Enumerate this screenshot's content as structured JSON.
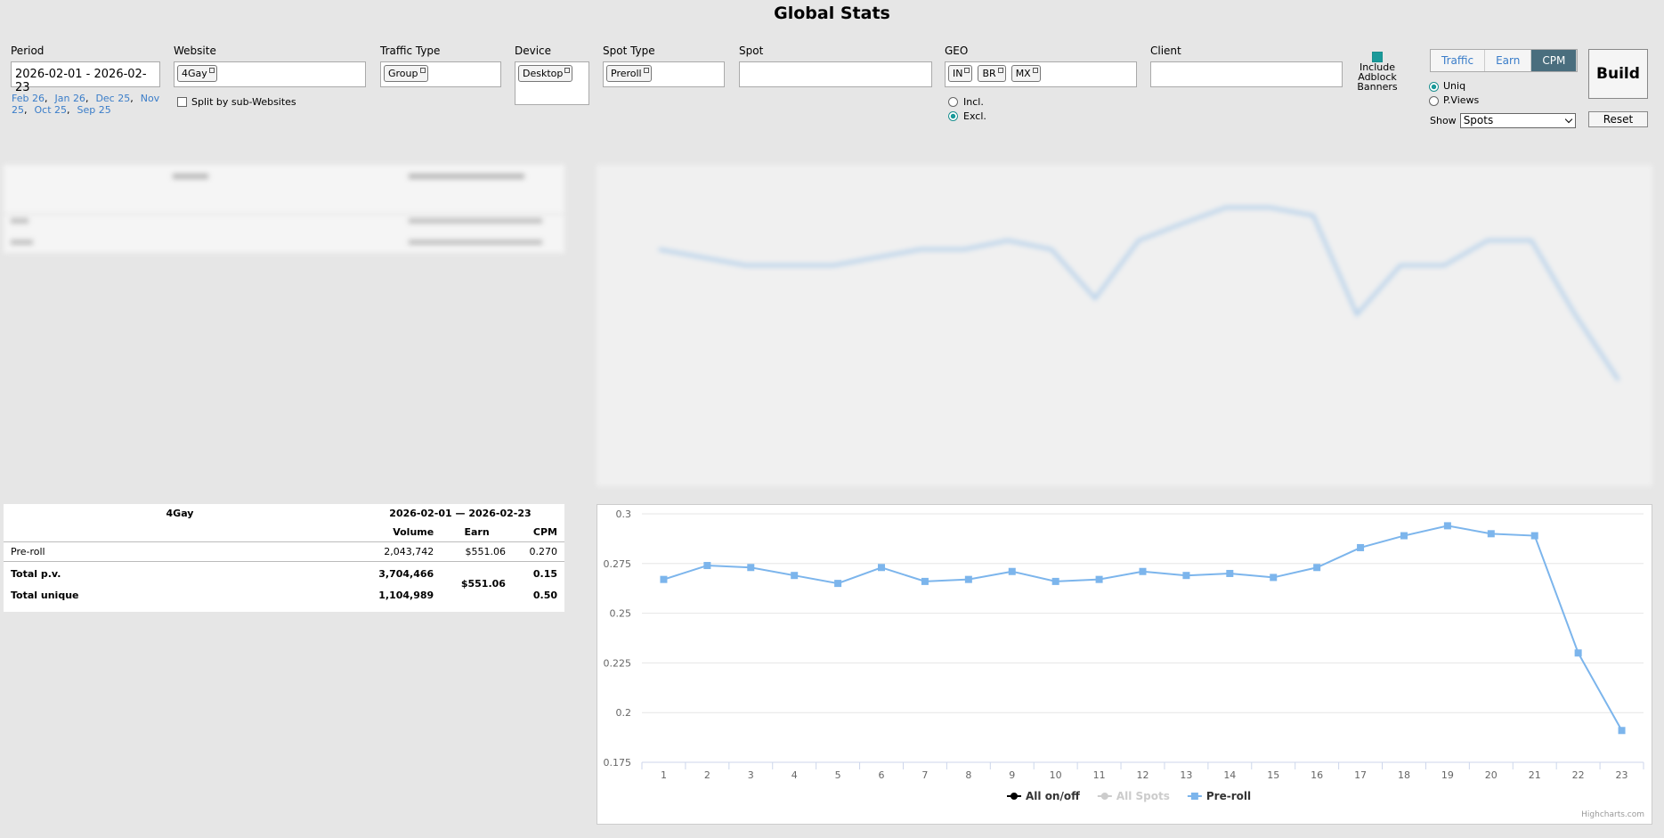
{
  "header": {
    "title": "Global Stats"
  },
  "filters": {
    "period": {
      "label": "Period",
      "value": "2026-02-01 - 2026-02-23",
      "shortcuts": [
        "Feb 26",
        "Jan 26",
        "Dec 25",
        "Nov 25",
        "Oct 25",
        "Sep 25"
      ]
    },
    "website": {
      "label": "Website",
      "tags": [
        "4Gay"
      ],
      "split_label": "Split by sub-Websites"
    },
    "traffic_type": {
      "label": "Traffic Type",
      "tags": [
        "Group"
      ]
    },
    "device": {
      "label": "Device",
      "tags": [
        "Desktop"
      ]
    },
    "spot_type": {
      "label": "Spot Type",
      "tags": [
        "Preroll"
      ]
    },
    "spot": {
      "label": "Spot"
    },
    "geo": {
      "label": "GEO",
      "tags": [
        "IN",
        "BR",
        "MX"
      ],
      "include_label": "Incl.",
      "exclude_label": "Excl."
    },
    "client": {
      "label": "Client"
    },
    "adblock": {
      "label": "Include Adblock Banners"
    },
    "metric_tabs": [
      "Traffic",
      "Earn",
      "CPM"
    ],
    "count_mode": [
      "Uniq",
      "P.Views"
    ],
    "show": {
      "label": "Show",
      "value": "Spots"
    },
    "build": "Build",
    "reset": "Reset"
  },
  "table": {
    "title": "4Gay",
    "period": "2026-02-01 — 2026-02-23",
    "columns": [
      "Volume",
      "Earn",
      "CPM"
    ],
    "rows": [
      {
        "name": "Pre-roll",
        "volume": "2,043,742",
        "earn": "$551.06",
        "cpm": "0.270"
      }
    ],
    "totals": [
      {
        "name": "Total p.v.",
        "volume": "3,704,466",
        "cpm": "0.15"
      },
      {
        "name": "Total unique",
        "volume": "1,104,989",
        "cpm": "0.50"
      }
    ],
    "totals_earn": "$551.06"
  },
  "chart_data": {
    "type": "line",
    "categories": [
      1,
      2,
      3,
      4,
      5,
      6,
      7,
      8,
      9,
      10,
      11,
      12,
      13,
      14,
      15,
      16,
      17,
      18,
      19,
      20,
      21,
      22,
      23
    ],
    "series": [
      {
        "name": "All on/off",
        "color": "#000000"
      },
      {
        "name": "All Spots",
        "color": "#cccccc"
      },
      {
        "name": "Pre-roll",
        "color": "#7cb5ec",
        "values": [
          0.267,
          0.274,
          0.273,
          0.269,
          0.265,
          0.273,
          0.266,
          0.267,
          0.271,
          0.266,
          0.267,
          0.271,
          0.269,
          0.27,
          0.268,
          0.273,
          0.283,
          0.289,
          0.294,
          0.29,
          0.289,
          0.23,
          0.191
        ]
      }
    ],
    "ylim": [
      0.175,
      0.3
    ],
    "yticks": [
      0.175,
      0.2,
      0.225,
      0.25,
      0.275,
      0.3
    ],
    "grid": true,
    "credits": "Highcharts.com"
  }
}
